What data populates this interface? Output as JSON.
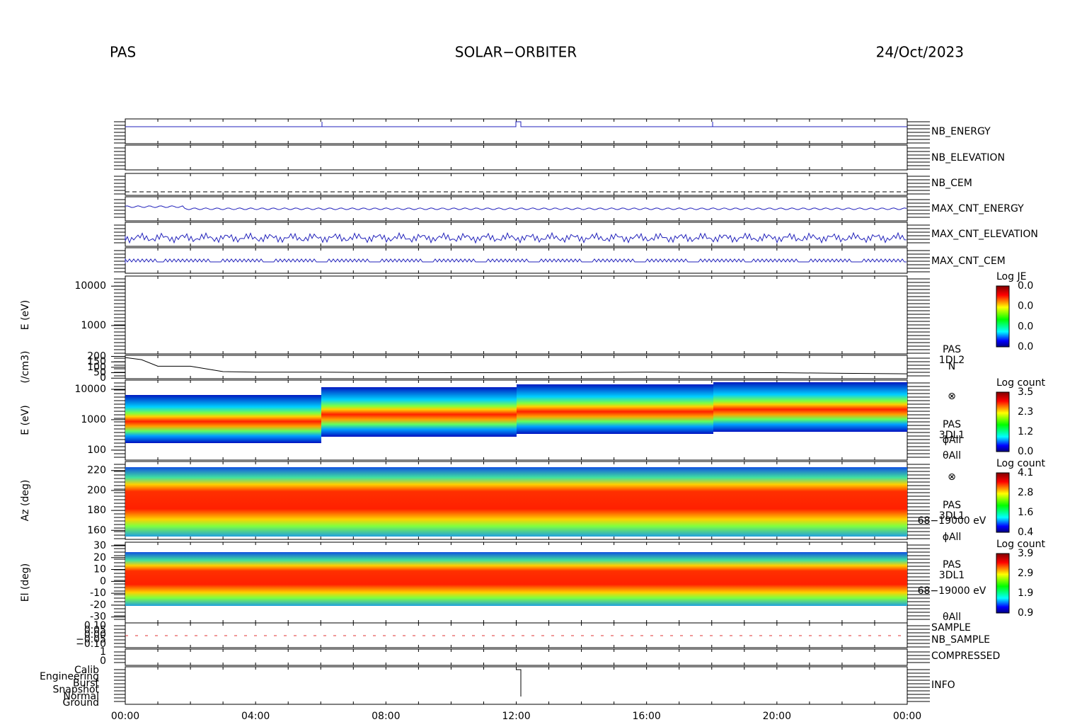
{
  "header": {
    "left": "PAS",
    "center": "SOLAR−ORBITER",
    "right": "24/Oct/2023"
  },
  "xticks": [
    "00:00",
    "04:00",
    "08:00",
    "12:00",
    "16:00",
    "20:00",
    "00:00"
  ],
  "panels": [
    {
      "label": "NB_ENERGY",
      "color": "#2222bb"
    },
    {
      "label": "NB_ELEVATION",
      "color": "#2222bb"
    },
    {
      "label": "NB_CEM",
      "color": "#2222bb"
    },
    {
      "label": "MAX_CNT_ENERGY",
      "color": "#2222bb"
    },
    {
      "label": "MAX_CNT_ELEVATION",
      "color": "#2222bb"
    },
    {
      "label": "MAX_CNT_CEM",
      "color": "#2222bb"
    }
  ],
  "je": {
    "ylabel": "E (eV)",
    "ylim": [
      190,
      18000
    ],
    "yticks": [
      1000,
      10000
    ],
    "log": true,
    "cbar_title": "Log JE",
    "cbar_ticks": [
      "0.0",
      "0.0",
      "0.0",
      "0.0"
    ]
  },
  "density": {
    "ylabel": "(/cm3)",
    "ylim": [
      -5,
      210
    ],
    "yticks": [
      0,
      50,
      100,
      150,
      200
    ],
    "labels": [
      "PAS",
      "1DL2",
      "N"
    ],
    "x": [
      0,
      0.5,
      1,
      2,
      3,
      4,
      6,
      8,
      10,
      12,
      14,
      16,
      18,
      20,
      22,
      24
    ],
    "values": [
      190,
      170,
      110,
      110,
      60,
      55,
      55,
      52,
      50,
      50,
      52,
      55,
      52,
      50,
      45,
      40
    ]
  },
  "energy": {
    "ylabel": "E (eV)",
    "ylim": [
      47,
      20000
    ],
    "yticks": [
      100,
      1000,
      10000
    ],
    "log": true,
    "cbar_title": "Log count",
    "cbar_ticks": [
      "3.5",
      "2.3",
      "1.2",
      "0.0"
    ],
    "labels": [
      "PAS",
      "3DL1",
      "ϕAll",
      "θAll"
    ]
  },
  "az": {
    "ylabel": "Az (deg)",
    "ylim": [
      151,
      229
    ],
    "yticks": [
      160,
      180,
      200,
      220
    ],
    "cbar_title": "Log count",
    "cbar_ticks": [
      "4.1",
      "2.8",
      "1.6",
      "0.4"
    ],
    "labels": [
      "PAS",
      "3DL1",
      "68−19000 eV",
      "ϕAll"
    ]
  },
  "el": {
    "ylabel": "El (deg)",
    "ylim": [
      -35,
      33
    ],
    "yticks": [
      -30,
      -20,
      -10,
      0,
      10,
      20,
      30
    ],
    "cbar_title": "Log count",
    "cbar_ticks": [
      "3.9",
      "2.9",
      "1.9",
      "0.9"
    ],
    "labels": [
      "PAS",
      "3DL1",
      "68−19000 eV",
      "θAll"
    ]
  },
  "sample": {
    "labels": [
      "SAMPLE",
      "NB_SAMPLE"
    ],
    "yticks": [
      "0.10",
      "0.05",
      "0.00",
      "−0.05",
      "−0.10"
    ]
  },
  "compressed": {
    "label": "COMPRESSED",
    "yticks": [
      0,
      1
    ]
  },
  "info": {
    "label": "INFO",
    "yticks": [
      "Calib",
      "Engineering",
      "Burst",
      "Snapshot",
      "Normal",
      "Ground"
    ]
  }
}
